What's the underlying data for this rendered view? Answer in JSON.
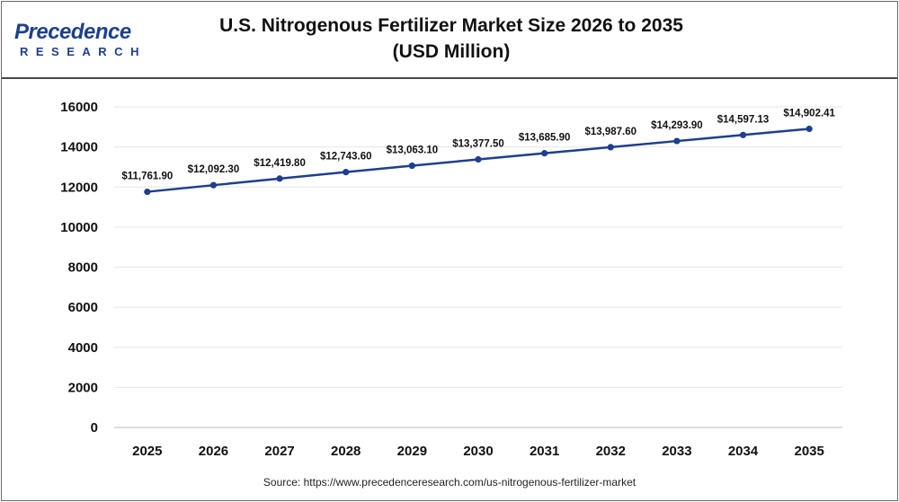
{
  "header": {
    "logo_main": "Precedence",
    "logo_sub": "RESEARCH",
    "title_line1": "U.S. Nitrogenous Fertilizer Market Size 2026 to 2035",
    "title_line2": "(USD Million)"
  },
  "footer": {
    "source": "Source: https://www.precedenceresearch.com/us-nitrogenous-fertilizer-market"
  },
  "colors": {
    "line": "#1d3f8f",
    "marker": "#1d3f8f",
    "logo": "#1d3f8f",
    "gridline": "#e6e6e6"
  },
  "chart_data": {
    "type": "line",
    "title": "U.S. Nitrogenous Fertilizer Market Size 2026 to 2035 (USD Million)",
    "xlabel": "",
    "ylabel": "",
    "categories": [
      "2025",
      "2026",
      "2027",
      "2028",
      "2029",
      "2030",
      "2031",
      "2032",
      "2033",
      "2034",
      "2035"
    ],
    "values": [
      11761.9,
      12092.3,
      12419.8,
      12743.6,
      13063.1,
      13377.5,
      13685.9,
      13987.6,
      14293.9,
      14597.13,
      14902.41
    ],
    "data_labels": [
      "$11,761.90",
      "$12,092.30",
      "$12,419.80",
      "$12,743.60",
      "$13,063.10",
      "$13,377.50",
      "$13,685.90",
      "$13,987.60",
      "$14,293.90",
      "$14,597.13",
      "$14,902.41"
    ],
    "ylim": [
      0,
      16000
    ],
    "yticks": [
      0,
      2000,
      4000,
      6000,
      8000,
      10000,
      12000,
      14000,
      16000
    ],
    "ytick_labels": [
      "0",
      "2000",
      "4000",
      "6000",
      "8000",
      "10000",
      "12000",
      "14000",
      "16000"
    ],
    "grid": true,
    "legend": "none"
  }
}
